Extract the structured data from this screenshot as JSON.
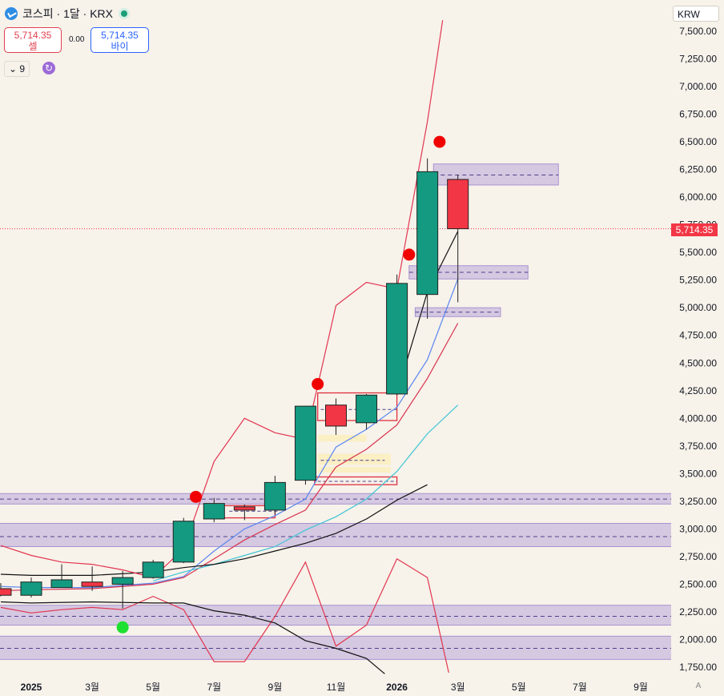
{
  "header": {
    "title": "코스피 · 1달 · KRX"
  },
  "trade": {
    "sell_price": "5,714.35",
    "sell_label": "셀",
    "spread": "0.00",
    "buy_price": "5,714.35",
    "buy_label": "바이"
  },
  "indicator": {
    "label": "9",
    "chevron": "⌄",
    "refresh_glyph": "↻"
  },
  "currency": "KRW",
  "auto_label": "A",
  "last_price_label": "5,714.35",
  "colors": {
    "up": "#139a80",
    "down": "#f23645",
    "zone": "#b9a6d9",
    "yellow_zone": "#fbeec0"
  },
  "chart_data": {
    "type": "candlestick",
    "ylim": [
      1700,
      7600
    ],
    "ytick_labels": [
      "7,500.00",
      "7,250.00",
      "7,000.00",
      "6,750.00",
      "6,500.00",
      "6,250.00",
      "6,000.00",
      "5,750.00",
      "5,500.00",
      "5,250.00",
      "5,000.00",
      "4,750.00",
      "4,500.00",
      "4,250.00",
      "4,000.00",
      "3,750.00",
      "3,500.00",
      "3,250.00",
      "3,000.00",
      "2,750.00",
      "2,500.00",
      "2,250.00",
      "2,000.00",
      "1,750.00"
    ],
    "yticks": [
      7500,
      7250,
      7000,
      6750,
      6500,
      6250,
      6000,
      5750,
      5500,
      5250,
      5000,
      4750,
      4500,
      4250,
      4000,
      3750,
      3500,
      3250,
      3000,
      2750,
      2500,
      2250,
      2000,
      1750
    ],
    "xtick_labels": [
      "2025",
      "3월",
      "5월",
      "7월",
      "9월",
      "11월",
      "2026",
      "3월",
      "5월",
      "7월",
      "9월"
    ],
    "xtick_index": [
      0,
      2,
      4,
      6,
      8,
      10,
      12,
      14,
      16,
      18,
      20
    ],
    "last_price": 5714.35,
    "candles": [
      {
        "i": -1,
        "o": 2460,
        "h": 2510,
        "l": 2390,
        "c": 2400
      },
      {
        "i": 0,
        "o": 2400,
        "h": 2560,
        "l": 2380,
        "c": 2520
      },
      {
        "i": 1,
        "o": 2470,
        "h": 2680,
        "l": 2470,
        "c": 2540
      },
      {
        "i": 2,
        "o": 2520,
        "h": 2660,
        "l": 2440,
        "c": 2480
      },
      {
        "i": 3,
        "o": 2500,
        "h": 2620,
        "l": 2280,
        "c": 2560
      },
      {
        "i": 4,
        "o": 2560,
        "h": 2720,
        "l": 2550,
        "c": 2700
      },
      {
        "i": 5,
        "o": 2700,
        "h": 3100,
        "l": 2690,
        "c": 3070
      },
      {
        "i": 6,
        "o": 3090,
        "h": 3280,
        "l": 3060,
        "c": 3230
      },
      {
        "i": 7,
        "o": 3200,
        "h": 3220,
        "l": 3080,
        "c": 3170
      },
      {
        "i": 8,
        "o": 3170,
        "h": 3480,
        "l": 3130,
        "c": 3420
      },
      {
        "i": 9,
        "o": 3440,
        "h": 4110,
        "l": 3400,
        "c": 4110
      },
      {
        "i": 10,
        "o": 4120,
        "h": 4180,
        "l": 3850,
        "c": 3930
      },
      {
        "i": 11,
        "o": 3960,
        "h": 4220,
        "l": 3900,
        "c": 4210
      },
      {
        "i": 12,
        "o": 4220,
        "h": 5300,
        "l": 4210,
        "c": 5220
      },
      {
        "i": 13,
        "o": 5120,
        "h": 6350,
        "l": 4900,
        "c": 6230
      },
      {
        "i": 14,
        "o": 6160,
        "h": 6200,
        "l": 5050,
        "c": 5714.35
      }
    ],
    "series": [
      {
        "color": "#5a86f0",
        "points": [
          [
            -1,
            2480
          ],
          [
            0,
            2470
          ],
          [
            2,
            2470
          ],
          [
            4,
            2510
          ],
          [
            5,
            2570
          ],
          [
            6,
            2800
          ],
          [
            7,
            3000
          ],
          [
            8,
            3120
          ],
          [
            9,
            3270
          ],
          [
            10,
            3740
          ],
          [
            11,
            3900
          ],
          [
            12,
            4100
          ],
          [
            13,
            4530
          ],
          [
            14,
            5260
          ]
        ]
      },
      {
        "color": "#d8324e",
        "points": [
          [
            -1,
            2440
          ],
          [
            0,
            2450
          ],
          [
            2,
            2460
          ],
          [
            4,
            2500
          ],
          [
            5,
            2560
          ],
          [
            6,
            2730
          ],
          [
            7,
            2900
          ],
          [
            8,
            3040
          ],
          [
            9,
            3170
          ],
          [
            10,
            3560
          ],
          [
            11,
            3720
          ],
          [
            12,
            3940
          ],
          [
            13,
            4360
          ],
          [
            14,
            4860
          ]
        ]
      },
      {
        "color": "#3ec5d6",
        "points": [
          [
            4,
            2530
          ],
          [
            5,
            2610
          ],
          [
            6,
            2680
          ],
          [
            7,
            2760
          ],
          [
            8,
            2840
          ],
          [
            9,
            2990
          ],
          [
            10,
            3110
          ],
          [
            11,
            3270
          ],
          [
            12,
            3520
          ],
          [
            13,
            3860
          ],
          [
            14,
            4120
          ]
        ]
      },
      {
        "color": "#111111",
        "points": [
          [
            -1,
            2590
          ],
          [
            0,
            2580
          ],
          [
            2,
            2580
          ],
          [
            4,
            2610
          ],
          [
            5,
            2650
          ],
          [
            6,
            2680
          ],
          [
            7,
            2730
          ],
          [
            8,
            2800
          ],
          [
            9,
            2870
          ],
          [
            10,
            2960
          ],
          [
            11,
            3090
          ],
          [
            12,
            3260
          ],
          [
            13,
            3400
          ]
        ]
      },
      {
        "color": "#e23650",
        "points": [
          [
            -1,
            2850
          ],
          [
            0,
            2760
          ],
          [
            1,
            2700
          ],
          [
            2,
            2680
          ],
          [
            3,
            2630
          ],
          [
            4,
            2560
          ],
          [
            5,
            2820
          ],
          [
            6,
            3610
          ],
          [
            7,
            4000
          ],
          [
            8,
            3870
          ],
          [
            9,
            3810
          ],
          [
            10,
            5020
          ],
          [
            11,
            5230
          ],
          [
            12,
            5170
          ],
          [
            13,
            6680
          ],
          [
            13.5,
            7600
          ]
        ]
      },
      {
        "color": "#e23650",
        "points": [
          [
            -1,
            2290
          ],
          [
            0,
            2240
          ],
          [
            1,
            2270
          ],
          [
            2,
            2290
          ],
          [
            3,
            2270
          ],
          [
            4,
            2390
          ],
          [
            5,
            2270
          ],
          [
            6,
            1800
          ],
          [
            7,
            1800
          ],
          [
            8,
            2210
          ],
          [
            9,
            2700
          ],
          [
            10,
            1940
          ],
          [
            11,
            2130
          ],
          [
            12,
            2730
          ],
          [
            13,
            2560
          ],
          [
            13.7,
            1700
          ]
        ]
      },
      {
        "color": "#111111",
        "points": [
          [
            -1,
            2340
          ],
          [
            0,
            2330
          ],
          [
            2,
            2340
          ],
          [
            4,
            2330
          ],
          [
            5,
            2330
          ],
          [
            6,
            2260
          ],
          [
            7,
            2220
          ],
          [
            8,
            2150
          ],
          [
            9,
            1990
          ],
          [
            10,
            1920
          ],
          [
            11,
            1830
          ],
          [
            11.6,
            1690
          ]
        ]
      },
      {
        "color": "#111111",
        "points": [
          [
            12,
            4220
          ],
          [
            13,
            5140
          ],
          [
            14,
            5690
          ]
        ]
      }
    ],
    "zones": [
      {
        "x0": -1.5,
        "x1": 21.5,
        "y0": 1820,
        "y1": 2030,
        "mid": 1920
      },
      {
        "x0": -1.5,
        "x1": 21.5,
        "y0": 2130,
        "y1": 2310,
        "mid": 2210
      },
      {
        "x0": -1.5,
        "x1": 21.5,
        "y0": 2840,
        "y1": 3050,
        "mid": 2930
      },
      {
        "x0": -1.5,
        "x1": 21.5,
        "y0": 3225,
        "y1": 3320,
        "mid": 3270
      },
      {
        "x0": 12.4,
        "x1": 16.3,
        "y0": 5260,
        "y1": 5380,
        "mid": 5320
      },
      {
        "x0": 12.6,
        "x1": 15.4,
        "y0": 4920,
        "y1": 5000,
        "mid": 4960
      },
      {
        "x0": 13.2,
        "x1": 17.3,
        "y0": 6110,
        "y1": 6300,
        "mid": 6200
      }
    ],
    "yellow_zones": [
      {
        "x0": 9.4,
        "x1": 11.8,
        "y0": 3580,
        "y1": 3680
      },
      {
        "x0": 9.4,
        "x1": 11.0,
        "y0": 3790,
        "y1": 3850
      },
      {
        "x0": 9.4,
        "x1": 11.8,
        "y0": 3510,
        "y1": 3560
      }
    ],
    "red_boxes": [
      {
        "x0": 9.4,
        "x1": 12.0,
        "y0": 3980,
        "y1": 4230
      },
      {
        "x0": 9.3,
        "x1": 12.0,
        "y0": 3400,
        "y1": 3470
      },
      {
        "x0": 6.0,
        "x1": 8.0,
        "y0": 3100,
        "y1": 3210
      }
    ],
    "dash_lines": [
      {
        "x0": 9.5,
        "x1": 12.0,
        "y": 4080
      },
      {
        "x0": 9.4,
        "x1": 12.0,
        "y": 3430
      },
      {
        "x0": 9.5,
        "x1": 11.6,
        "y": 3620
      },
      {
        "x0": 6.5,
        "x1": 8.1,
        "y": 3160
      }
    ],
    "signals": [
      {
        "i": 5.4,
        "v": 3290,
        "color": "#f00000"
      },
      {
        "i": 9.4,
        "v": 4310,
        "color": "#f00000"
      },
      {
        "i": 12.4,
        "v": 5480,
        "color": "#f00000"
      },
      {
        "i": 13.4,
        "v": 6500,
        "color": "#f00000"
      },
      {
        "i": 3.0,
        "v": 2110,
        "color": "#1ee030"
      }
    ]
  }
}
